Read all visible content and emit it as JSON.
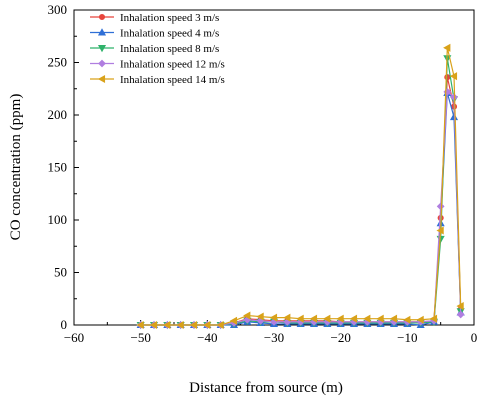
{
  "chart_data": {
    "type": "line",
    "xlabel": "Distance from source (m)",
    "ylabel": "CO concentration (ppm)",
    "xlim": [
      -60,
      0
    ],
    "ylim": [
      0,
      300
    ],
    "xticks": [
      -60,
      -50,
      -40,
      -30,
      -20,
      -10,
      0
    ],
    "yticks": [
      0,
      50,
      100,
      150,
      200,
      250,
      300
    ],
    "grid": false,
    "legend_position": "top-left",
    "series": [
      {
        "name": "Inhalation speed 3 m/s",
        "color": "#e8453c",
        "marker": "circle",
        "x": [
          -50,
          -48,
          -46,
          -44,
          -42,
          -40,
          -38,
          -36,
          -34,
          -32,
          -30,
          -28,
          -26,
          -24,
          -22,
          -20,
          -18,
          -16,
          -14,
          -12,
          -10,
          -8,
          -6,
          -5,
          -4,
          -3,
          -2
        ],
        "y": [
          0,
          0,
          0,
          0,
          0,
          0,
          0,
          2,
          6,
          5,
          4,
          4,
          4,
          4,
          4,
          3,
          3,
          3,
          3,
          3,
          3,
          3,
          4,
          102,
          236,
          208,
          15
        ]
      },
      {
        "name": "Inhalation speed 4 m/s",
        "color": "#2f6fd6",
        "marker": "triangle-up",
        "x": [
          -50,
          -48,
          -46,
          -44,
          -42,
          -40,
          -38,
          -36,
          -34,
          -32,
          -30,
          -28,
          -26,
          -24,
          -22,
          -20,
          -18,
          -16,
          -14,
          -12,
          -10,
          -8,
          -6,
          -5,
          -4,
          -3,
          -2
        ],
        "y": [
          0,
          0,
          0,
          0,
          0,
          0,
          0,
          0,
          3,
          2,
          1,
          1,
          1,
          1,
          1,
          1,
          1,
          1,
          1,
          1,
          1,
          0,
          3,
          97,
          221,
          198,
          12
        ]
      },
      {
        "name": "Inhalation speed 8 m/s",
        "color": "#2fb26a",
        "marker": "triangle-down",
        "x": [
          -50,
          -48,
          -46,
          -44,
          -42,
          -40,
          -38,
          -36,
          -34,
          -32,
          -30,
          -28,
          -26,
          -24,
          -22,
          -20,
          -18,
          -16,
          -14,
          -12,
          -10,
          -8,
          -6,
          -5,
          -4,
          -3,
          -2
        ],
        "y": [
          0,
          0,
          0,
          0,
          0,
          0,
          0,
          1,
          4,
          3,
          3,
          2,
          2,
          2,
          2,
          2,
          2,
          2,
          2,
          2,
          2,
          2,
          3,
          82,
          254,
          215,
          13
        ]
      },
      {
        "name": "Inhalation speed 12 m/s",
        "color": "#b07ee0",
        "marker": "diamond",
        "x": [
          -50,
          -48,
          -46,
          -44,
          -42,
          -40,
          -38,
          -36,
          -34,
          -32,
          -30,
          -28,
          -26,
          -24,
          -22,
          -20,
          -18,
          -16,
          -14,
          -12,
          -10,
          -8,
          -6,
          -5,
          -4,
          -3,
          -2
        ],
        "y": [
          0,
          0,
          0,
          0,
          0,
          0,
          0,
          2,
          5,
          4,
          3,
          3,
          3,
          3,
          3,
          3,
          3,
          3,
          3,
          3,
          3,
          3,
          4,
          113,
          222,
          217,
          10
        ]
      },
      {
        "name": "Inhalation speed 14 m/s",
        "color": "#d9a21a",
        "marker": "triangle-left",
        "x": [
          -50,
          -48,
          -46,
          -44,
          -42,
          -40,
          -38,
          -36,
          -34,
          -32,
          -30,
          -28,
          -26,
          -24,
          -22,
          -20,
          -18,
          -16,
          -14,
          -12,
          -10,
          -8,
          -6,
          -5,
          -4,
          -3,
          -2
        ],
        "y": [
          0,
          0,
          0,
          0,
          0,
          0,
          0,
          4,
          9,
          8,
          7,
          7,
          6,
          6,
          6,
          6,
          6,
          6,
          6,
          6,
          5,
          5,
          6,
          90,
          264,
          237,
          18
        ]
      }
    ]
  }
}
